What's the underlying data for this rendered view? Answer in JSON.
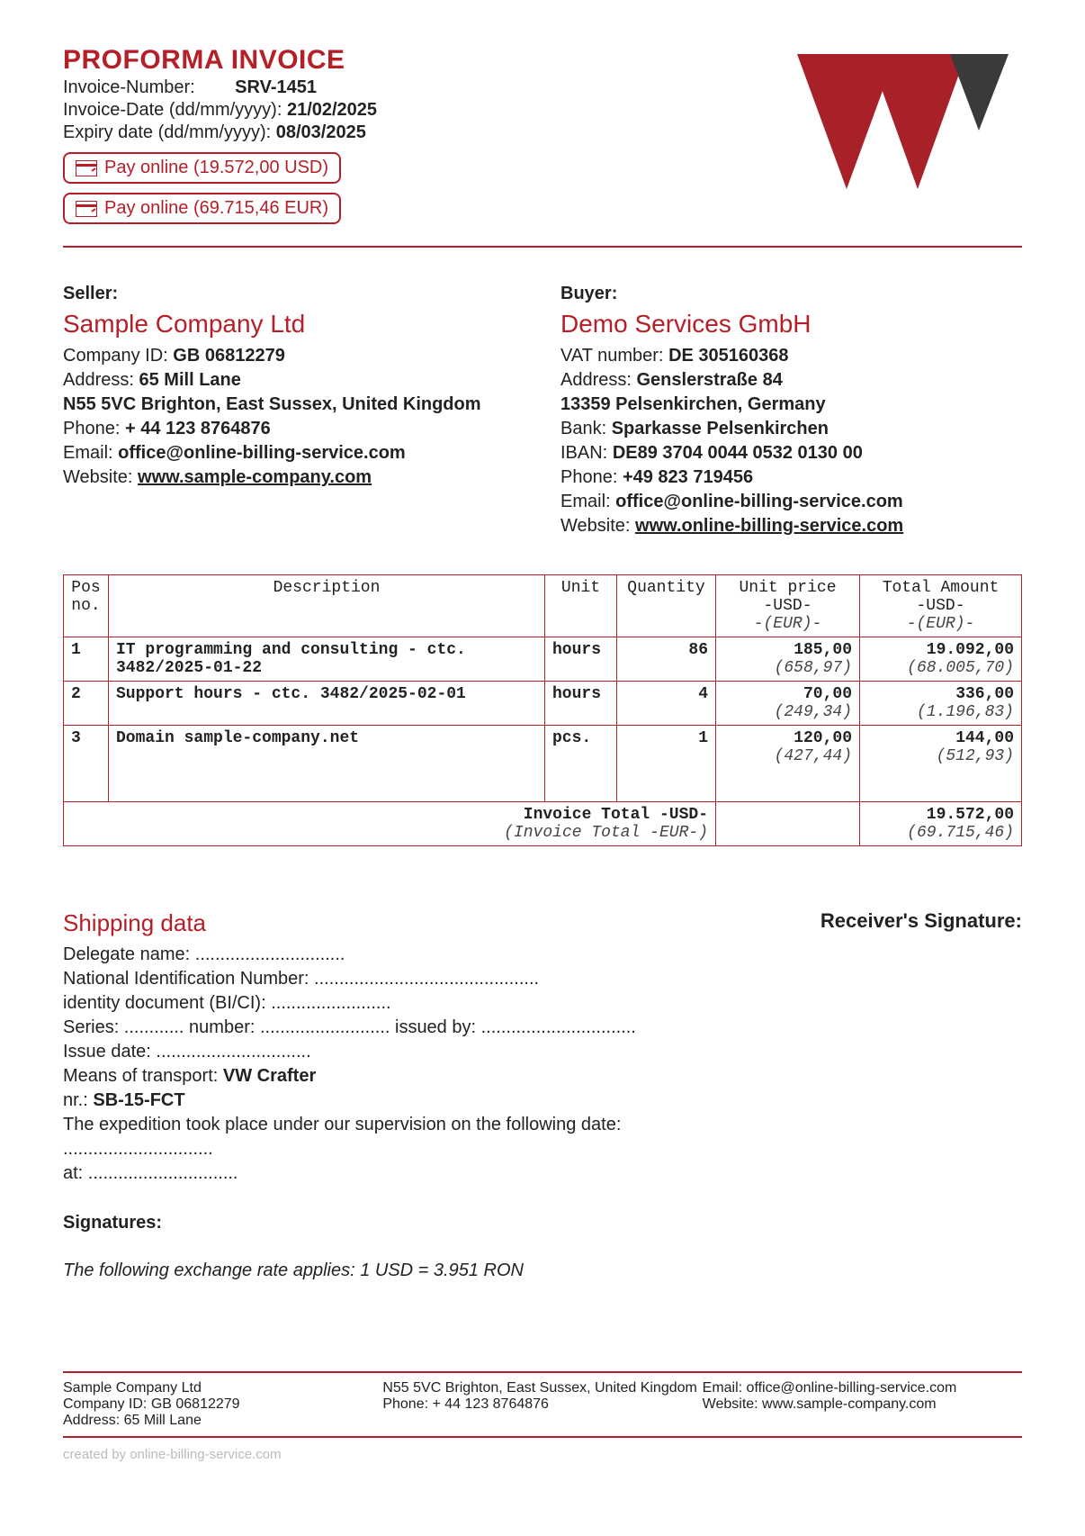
{
  "title": "PROFORMA INVOICE",
  "meta": {
    "invoice_number_label": "Invoice-Number:",
    "invoice_number": "SRV-1451",
    "invoice_date_label": "Invoice-Date (dd/mm/yyyy):",
    "invoice_date": "21/02/2025",
    "expiry_label": "Expiry date (dd/mm/yyyy):",
    "expiry_date": "08/03/2025"
  },
  "pay_buttons": {
    "usd": "Pay online (19.572,00 USD)",
    "eur": "Pay online (69.715,46 EUR)"
  },
  "seller": {
    "label": "Seller:",
    "name": "Sample Company Ltd",
    "company_id_label": "Company ID:",
    "company_id": "GB 06812279",
    "address_label": "Address:",
    "address1": "65 Mill Lane",
    "address2": "N55 5VC Brighton, East Sussex, United Kingdom",
    "phone_label": "Phone:",
    "phone": "+ 44 123 8764876",
    "email_label": "Email:",
    "email": "office@online-billing-service.com",
    "website_label": "Website:",
    "website": "www.sample-company.com"
  },
  "buyer": {
    "label": "Buyer:",
    "name": "Demo Services GmbH",
    "vat_label": "VAT number:",
    "vat": "DE 305160368",
    "address_label": "Address:",
    "address1": "Genslerstraße 84",
    "address2": "13359 Pelsenkirchen, Germany",
    "bank_label": "Bank:",
    "bank": "Sparkasse Pelsenkirchen",
    "iban_label": "IBAN:",
    "iban": "DE89 3704 0044 0532 0130 00",
    "phone_label": "Phone:",
    "phone": "+49 823 719456",
    "email_label": "Email:",
    "email": "office@online-billing-service.com",
    "website_label": "Website:",
    "website": "www.online-billing-service.com"
  },
  "table": {
    "headers": {
      "pos": "Pos no.",
      "desc": "Description",
      "unit": "Unit",
      "qty": "Quantity",
      "price": "Unit price",
      "price_usd": "-USD-",
      "price_eur": "-(EUR)-",
      "total": "Total Amount",
      "total_usd": "-USD-",
      "total_eur": "-(EUR)-"
    },
    "rows": [
      {
        "pos": "1",
        "desc": "IT programming and consulting - ctc. 3482/2025-01-22",
        "unit": "hours",
        "qty": "86",
        "price_usd": "185,00",
        "price_eur": "(658,97)",
        "total_usd": "19.092,00",
        "total_eur": "(68.005,70)"
      },
      {
        "pos": "2",
        "desc": "Support hours - ctc. 3482/2025-02-01",
        "unit": "hours",
        "qty": "4",
        "price_usd": "70,00",
        "price_eur": "(249,34)",
        "total_usd": "336,00",
        "total_eur": "(1.196,83)"
      },
      {
        "pos": "3",
        "desc": "Domain sample-company.net",
        "unit": "pcs.",
        "qty": "1",
        "price_usd": "120,00",
        "price_eur": "(427,44)",
        "total_usd": "144,00",
        "total_eur": "(512,93)"
      }
    ],
    "totals": {
      "label_usd": "Invoice Total  -USD-",
      "label_eur": "(Invoice Total -EUR-)",
      "usd": "19.572,00",
      "eur": "(69.715,46)"
    }
  },
  "shipping": {
    "title": "Shipping data",
    "receiver_sig": "Receiver's Signature:",
    "delegate": "Delegate name: ..............................",
    "nin": "National Identification Number: .............................................",
    "identity": "identity document (BI/CI): ........................",
    "series": "Series: ............ number: .......................... issued by: ...............................",
    "issue_date": "Issue date: ...............................",
    "transport_label": "Means of transport:",
    "transport": "VW Crafter",
    "nr_label": "nr.:",
    "nr": "SB-15-FCT",
    "expedition": "The expedition took place under our supervision on the following date:",
    "dots1": "..............................",
    "at": "at: ..............................",
    "signatures": "Signatures:",
    "exchange": "The following exchange rate applies: 1 USD = 3.951 RON"
  },
  "footer": {
    "col1_1": "Sample Company Ltd",
    "col1_2": "Company ID: GB 06812279",
    "col1_3": "Address: 65 Mill Lane",
    "col2_1": "N55 5VC Brighton, East Sussex, United Kingdom",
    "col2_2": "Phone: + 44 123 8764876",
    "col3_1": "Email: office@online-billing-service.com",
    "col3_2": "Website: www.sample-company.com",
    "created": "created by online-billing-service.com"
  },
  "colors": {
    "accent": "#b51f28",
    "dark": "#3a3a3a"
  }
}
